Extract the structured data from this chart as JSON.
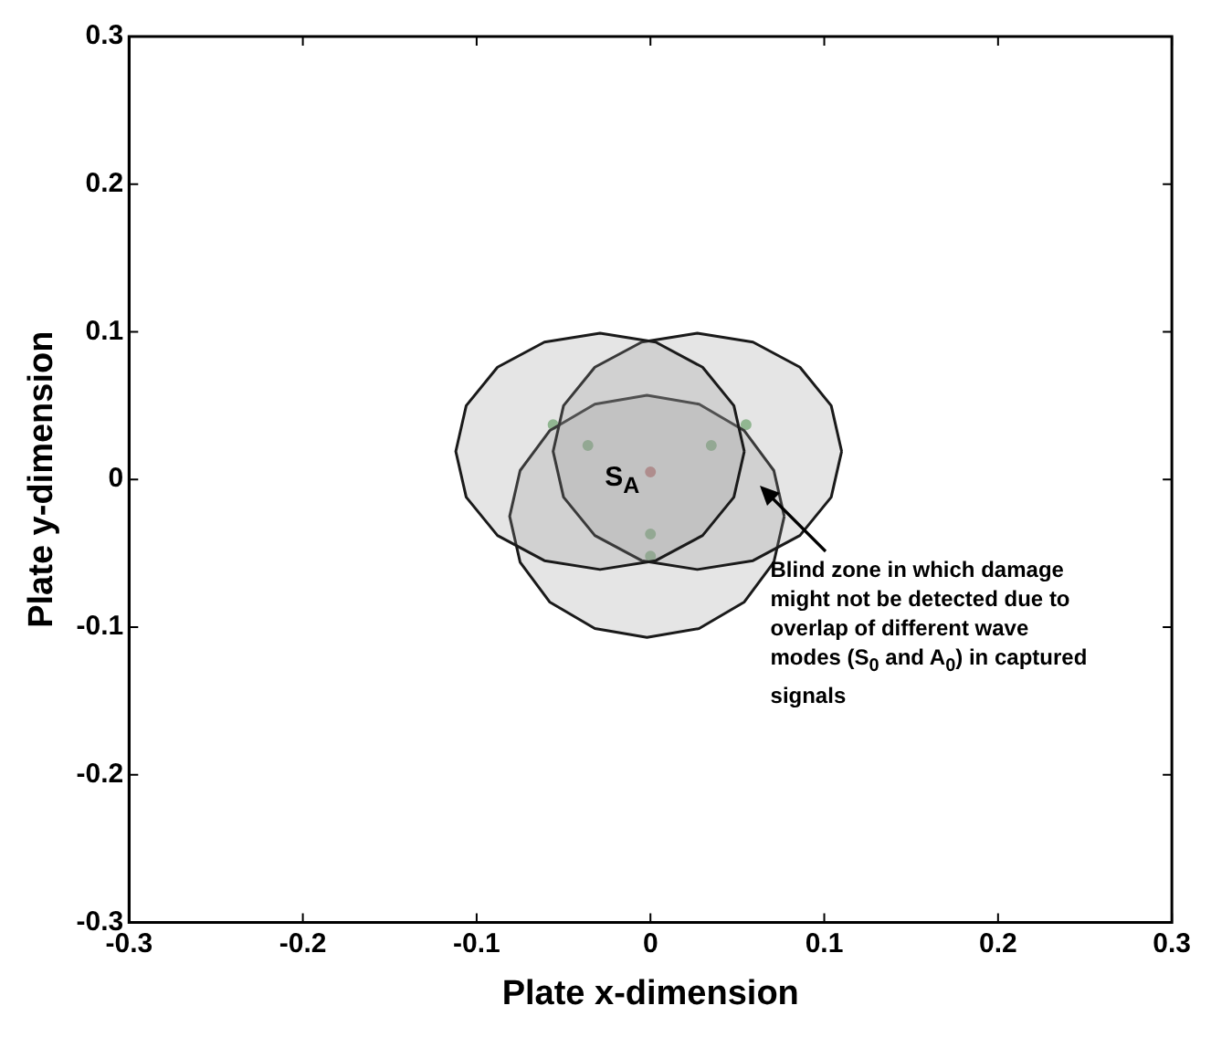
{
  "chart_data": {
    "type": "area",
    "xlabel": "Plate x-dimension",
    "ylabel": "Plate y-dimension",
    "xlim": [
      -0.3,
      0.3
    ],
    "ylim": [
      -0.3,
      0.3
    ],
    "xticks": [
      -0.3,
      -0.2,
      -0.1,
      0,
      0.1,
      0.2,
      0.3
    ],
    "yticks": [
      -0.3,
      -0.2,
      -0.1,
      0,
      0.1,
      0.2,
      0.3
    ],
    "grid": false,
    "legend": false,
    "marker": "none",
    "line_style": "solid",
    "series": [
      {
        "color": "#1a1a1a",
        "x": [
          0.054,
          0.048,
          0.03,
          0.003,
          -0.029,
          -0.061,
          -0.088,
          -0.106,
          -0.112,
          -0.106,
          -0.088,
          -0.061,
          -0.029,
          0.003,
          0.03,
          0.048,
          0.054
        ],
        "values": [
          0.019,
          0.05,
          0.076,
          0.093,
          0.099,
          0.093,
          0.076,
          0.05,
          0.019,
          -0.012,
          -0.038,
          -0.055,
          -0.061,
          -0.055,
          -0.038,
          -0.012,
          0.019
        ]
      },
      {
        "color": "#1a1a1a",
        "x": [
          0.11,
          0.104,
          0.086,
          0.059,
          0.027,
          -0.005,
          -0.032,
          -0.05,
          -0.056,
          -0.05,
          -0.032,
          -0.005,
          0.027,
          0.059,
          0.086,
          0.104,
          0.11
        ],
        "values": [
          0.019,
          0.05,
          0.076,
          0.093,
          0.099,
          0.093,
          0.076,
          0.05,
          0.019,
          -0.012,
          -0.038,
          -0.055,
          -0.061,
          -0.055,
          -0.038,
          -0.012,
          0.019
        ]
      },
      {
        "color": "#1a1a1a",
        "x": [
          0.077,
          0.071,
          0.054,
          0.028,
          -0.002,
          -0.032,
          -0.058,
          -0.075,
          -0.081,
          -0.075,
          -0.058,
          -0.032,
          -0.002,
          0.028,
          0.054,
          0.071,
          0.077
        ],
        "values": [
          -0.025,
          0.006,
          0.033,
          0.051,
          0.057,
          0.051,
          0.033,
          0.006,
          -0.025,
          -0.056,
          -0.083,
          -0.101,
          -0.107,
          -0.101,
          -0.083,
          -0.056,
          -0.025
        ]
      },
      {
        "type": "scatter",
        "color": "#8fc08f",
        "marker": "circle",
        "x": [
          -0.036,
          0.035,
          0,
          0,
          -0.056,
          0.055
        ],
        "values": [
          0.023,
          0.023,
          -0.037,
          -0.052,
          0.037,
          0.037
        ]
      },
      {
        "type": "scatter",
        "color": "#d08080",
        "marker": "circle",
        "x": [
          0
        ],
        "values": [
          0.005
        ]
      }
    ],
    "annotations": [
      {
        "text": "S$_{A}$",
        "x": 0,
        "y": 0
      },
      "Blind zone in which damage might not be detected due to overlap of different wave modes (S$_{0}$ and A$_{0}$) in captured signals"
    ]
  }
}
